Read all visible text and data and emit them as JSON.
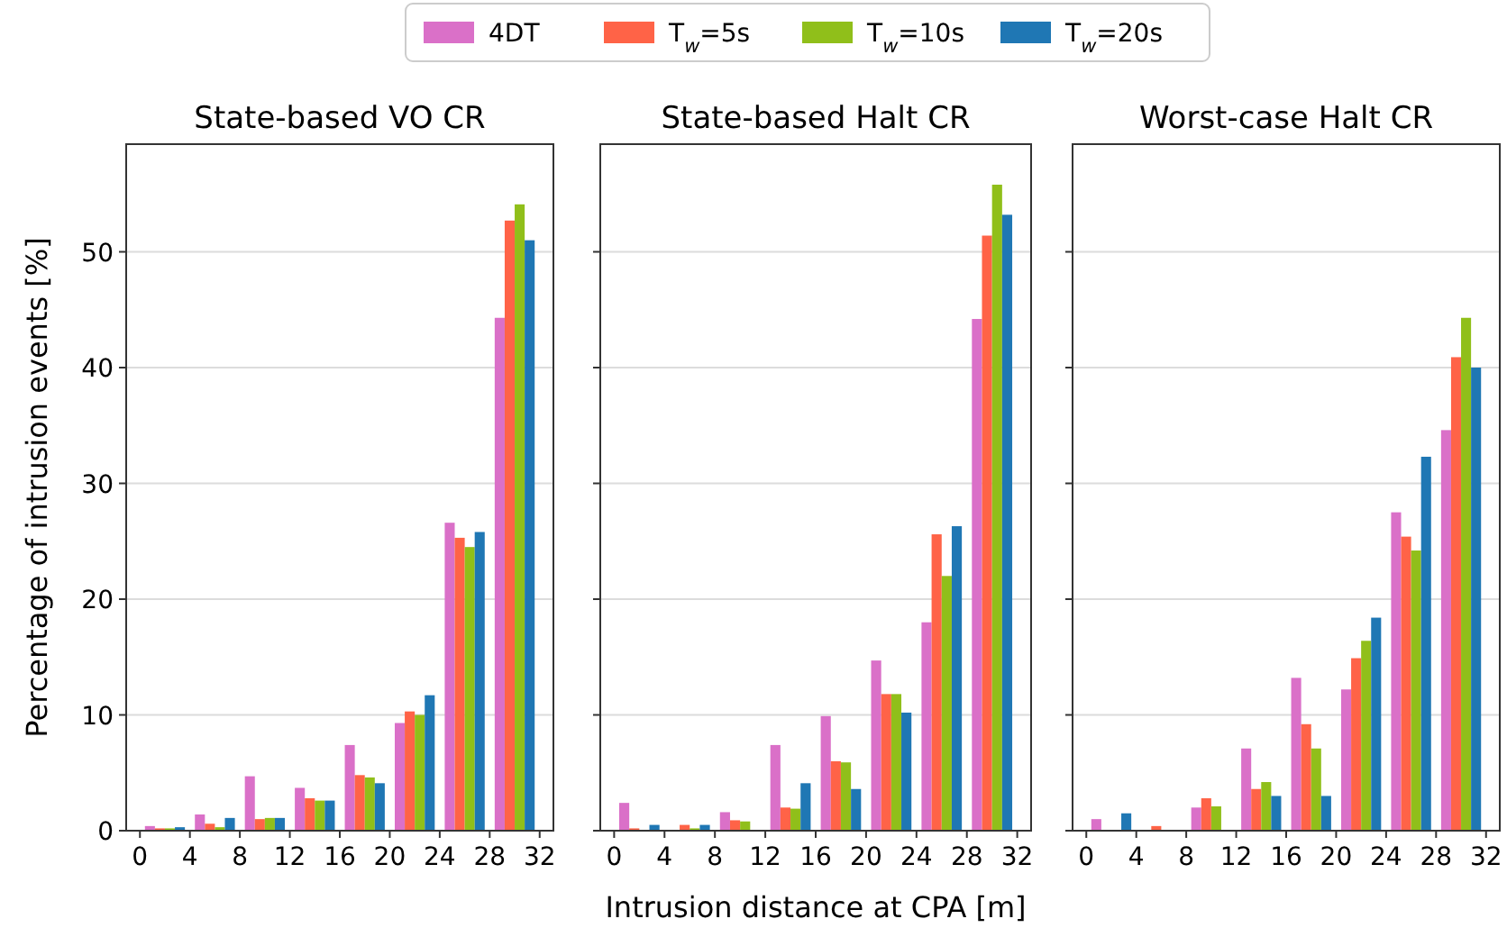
{
  "chart_data": [
    {
      "type": "bar",
      "title": "State-based VO CR",
      "ylabel": "Percentage of intrusion events [%]",
      "x": [
        2,
        6,
        10,
        14,
        18,
        22,
        26,
        30
      ],
      "xlim": [
        -1.1,
        33.1
      ],
      "xticks": [
        0,
        4,
        8,
        12,
        16,
        20,
        24,
        28,
        32
      ],
      "ylim": [
        0,
        59.3
      ],
      "yticks": [
        0,
        10,
        20,
        30,
        40,
        50
      ],
      "grid": "y",
      "legend": "top",
      "series": [
        {
          "name": "4DT",
          "color": "#da70c8",
          "values": [
            0.4,
            1.4,
            4.7,
            3.7,
            7.4,
            9.3,
            26.6,
            44.3
          ]
        },
        {
          "name": "T$_{w}$=5s",
          "color": "#ff6347",
          "values": [
            0.2,
            0.6,
            1.0,
            2.8,
            4.8,
            10.3,
            25.3,
            52.7
          ]
        },
        {
          "name": "T$_{w}$=10s",
          "color": "#90bf1a",
          "values": [
            0.2,
            0.3,
            1.1,
            2.6,
            4.6,
            10.0,
            24.5,
            54.1
          ]
        },
        {
          "name": "T$_{w}$=20s",
          "color": "#1f77b4",
          "values": [
            0.3,
            1.1,
            1.1,
            2.6,
            4.1,
            11.7,
            25.8,
            51.0
          ]
        }
      ]
    },
    {
      "type": "bar",
      "title": "State-based Halt CR",
      "xlabel": "Intrusion distance at CPA [m]",
      "x": [
        2,
        6,
        10,
        14,
        18,
        22,
        26,
        30
      ],
      "xlim": [
        -1.1,
        33.1
      ],
      "xticks": [
        0,
        4,
        8,
        12,
        16,
        20,
        24,
        28,
        32
      ],
      "ylim": [
        0,
        59.3
      ],
      "yticks": [
        0,
        10,
        20,
        30,
        40,
        50
      ],
      "tick_labels": "x",
      "grid": "y",
      "series": [
        {
          "color": "#da70c8",
          "values": [
            2.4,
            0,
            1.6,
            7.4,
            9.9,
            14.7,
            18.0,
            44.2
          ]
        },
        {
          "color": "#ff6347",
          "values": [
            0.2,
            0.5,
            0.9,
            2.0,
            6.0,
            11.8,
            25.6,
            51.4
          ]
        },
        {
          "color": "#90bf1a",
          "values": [
            0,
            0.2,
            0.8,
            1.9,
            5.9,
            11.8,
            22.0,
            55.8
          ]
        },
        {
          "color": "#1f77b4",
          "values": [
            0.5,
            0.5,
            0,
            4.1,
            3.6,
            10.2,
            26.3,
            53.2
          ]
        }
      ]
    },
    {
      "type": "bar",
      "title": "Worst-case Halt CR",
      "x": [
        2,
        6,
        10,
        14,
        18,
        22,
        26,
        30
      ],
      "xlim": [
        -1.1,
        33.1
      ],
      "xticks": [
        0,
        4,
        8,
        12,
        16,
        20,
        24,
        28,
        32
      ],
      "ylim": [
        0,
        59.3
      ],
      "yticks": [
        0,
        10,
        20,
        30,
        40,
        50
      ],
      "tick_labels": "x",
      "grid": "y",
      "series": [
        {
          "color": "#da70c8",
          "values": [
            1.0,
            0,
            2.0,
            7.1,
            13.2,
            12.2,
            27.5,
            34.6
          ]
        },
        {
          "color": "#ff6347",
          "values": [
            0,
            0.4,
            2.8,
            3.6,
            9.2,
            14.9,
            25.4,
            40.9
          ]
        },
        {
          "color": "#90bf1a",
          "values": [
            0,
            0,
            2.1,
            4.2,
            7.1,
            16.4,
            24.2,
            44.3
          ]
        },
        {
          "color": "#1f77b4",
          "values": [
            1.5,
            0,
            0,
            3.0,
            3.0,
            18.4,
            32.3,
            40.0
          ]
        }
      ]
    }
  ]
}
